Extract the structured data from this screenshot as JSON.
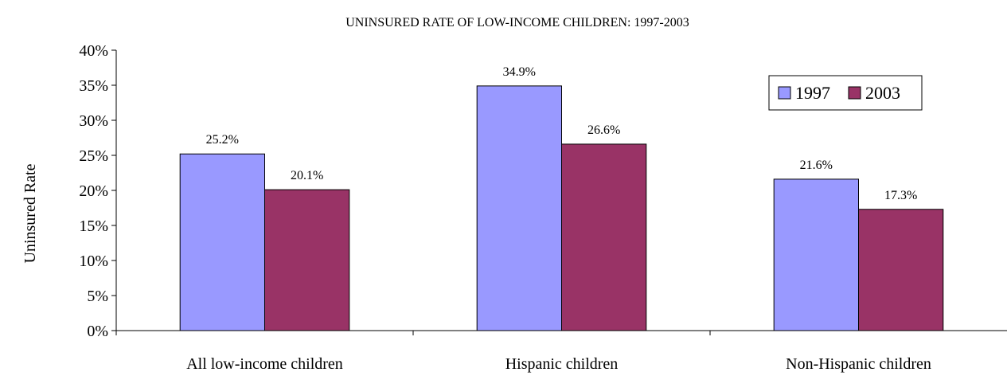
{
  "chart_data": {
    "type": "bar",
    "title": "UNINSURED RATE OF LOW-INCOME CHILDREN:  1997-2003",
    "ylabel": "Uninsured Rate",
    "xlabel": "",
    "categories": [
      "All low-income children",
      "Hispanic children",
      "Non-Hispanic children"
    ],
    "series": [
      {
        "name": "1997",
        "values": [
          25.2,
          34.9,
          21.6
        ],
        "labels": [
          "25.2%",
          "34.9%",
          "21.6%"
        ],
        "color": "#9999ff"
      },
      {
        "name": "2003",
        "values": [
          20.1,
          26.6,
          17.3
        ],
        "labels": [
          "20.1%",
          "26.6%",
          "17.3%"
        ],
        "color": "#993366"
      }
    ],
    "ylim": [
      0,
      40
    ],
    "yticks": [
      "0%",
      "5%",
      "10%",
      "15%",
      "20%",
      "25%",
      "30%",
      "35%",
      "40%"
    ],
    "grid": false,
    "legend_position": "top-right"
  }
}
